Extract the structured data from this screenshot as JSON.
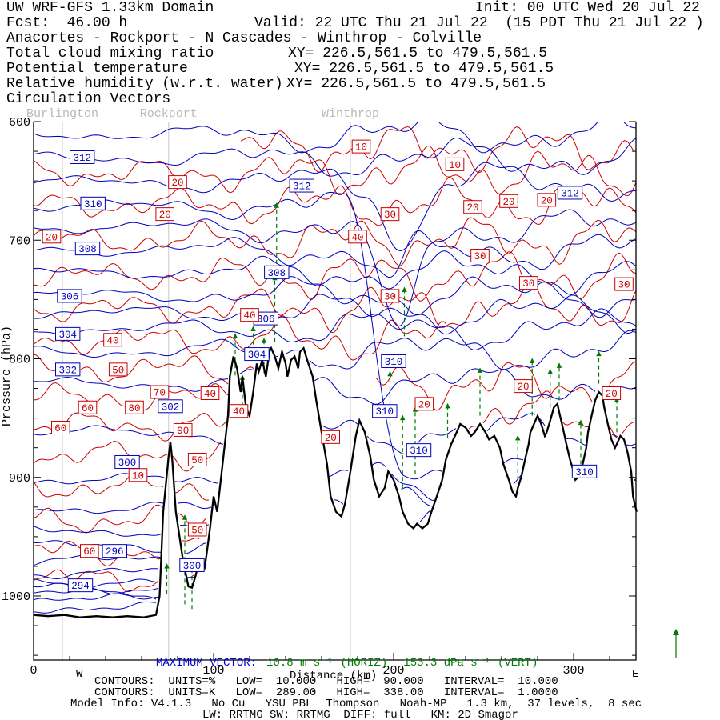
{
  "colors": {
    "black": "#000000",
    "blue": "#0000cd",
    "red": "#d90000",
    "green": "#007a00",
    "gray_label": "#b9b9b9",
    "gray_line": "#c9c9c9"
  },
  "header": {
    "title_left": "UW WRF-GFS 1.33km Domain",
    "init": "Init: 00 UTC Wed 20 Jul 22",
    "fcst": "Fcst:  46.00 h",
    "valid": "Valid: 22 UTC Thu 21 Jul 22  (15 PDT Thu 21 Jul 22 )",
    "route": "Anacortes - Rockport - N Cascades - Winthrop - Colville",
    "fields": [
      {
        "label": "Total cloud mixing ratio",
        "xy": "XY= 226.5,561.5 to 479.5,561.5",
        "color": "black"
      },
      {
        "label": "Potential temperature",
        "xy": "XY= 226.5,561.5 to 479.5,561.5",
        "color": "blue"
      },
      {
        "label": "Relative humidity (w.r.t. water)",
        "xy": "XY= 226.5,561.5 to 479.5,561.5",
        "color": "red"
      },
      {
        "label": "Circulation Vectors",
        "xy": "",
        "color": "green"
      }
    ]
  },
  "footer": {
    "max_vector_label": "MAXIMUM VECTOR:",
    "max_vector_horiz": "10.8 m s⁻¹ (HORIZ)",
    "max_vector_vert": "153.3 dPa s⁻¹ (VERT)",
    "rh_contour_info": "CONTOURS:  UNITS=%   LOW=  10.000   HIGH=  90.000   INTERVAL=  10.000",
    "theta_contour_info": "CONTOURS:  UNITS=K   LOW=  289.00   HIGH=  338.00   INTERVAL=  1.0000",
    "model_info": "Model Info: V4.1.3   No Cu   YSU PBL  Thompson   Noah-MP   1.3 km,  37 levels,  8 sec",
    "model_info2": "LW: RRTMG SW: RRTMG  DIFF: full   KM: 2D Smagor"
  },
  "chart_data": {
    "type": "contour-cross-section",
    "x_axis": {
      "label": "Distance (km)",
      "ticks": [
        0,
        100,
        200,
        300
      ],
      "minor_tick_km": 20,
      "range_km": [
        0,
        335
      ],
      "west_label": "W",
      "east_label": "E"
    },
    "y_axis": {
      "label": "Pressure (hPa)",
      "ticks": [
        600,
        700,
        800,
        900,
        1000
      ],
      "minor_tick_hPa": 25,
      "range": [
        600,
        1054
      ]
    },
    "cities": [
      {
        "name": "Burlington",
        "km": 16
      },
      {
        "name": "Rockport",
        "km": 75
      },
      {
        "name": "Winthrop",
        "km": 176
      }
    ],
    "theta_contour_spec": {
      "units": "K",
      "low": 289,
      "high": 338,
      "interval": 1
    },
    "rh_contour_spec": {
      "units": "%",
      "low": 10,
      "high": 90,
      "interval": 10
    },
    "theta_levels": [
      {
        "v": 289,
        "p0": 1016
      },
      {
        "v": 290,
        "p0": 1010
      },
      {
        "v": 291,
        "p0": 1003
      },
      {
        "v": 292,
        "p0": 998
      },
      {
        "v": 293,
        "p0": 993
      },
      {
        "v": 294,
        "p0": 988
      },
      {
        "v": 295,
        "p0": 980
      },
      {
        "v": 296,
        "p0": 970
      },
      {
        "v": 297,
        "p0": 958
      },
      {
        "v": 298,
        "p0": 945
      },
      {
        "v": 299,
        "p0": 926
      },
      {
        "v": 300,
        "p0": 902
      },
      {
        "v": 301,
        "p0": 862
      },
      {
        "v": 302,
        "p0": 821
      },
      {
        "v": 303,
        "p0": 794
      },
      {
        "v": 304,
        "p0": 775
      },
      {
        "v": 305,
        "p0": 761
      },
      {
        "v": 306,
        "p0": 746
      },
      {
        "v": 307,
        "p0": 727
      },
      {
        "v": 308,
        "p0": 708,
        "dip": {
          "km": 198,
          "w": 10,
          "d": 30
        }
      },
      {
        "v": 309,
        "p0": 689,
        "dip": {
          "km": 201,
          "w": 13,
          "d": 95
        }
      },
      {
        "v": 310,
        "p0": 671,
        "shelf": {
          "a": 172,
          "b": 206,
          "p": 893
        }
      },
      {
        "v": 311,
        "p0": 651,
        "dip": {
          "km": 206,
          "w": 12,
          "d": 55
        }
      },
      {
        "v": 312,
        "p0": 631
      },
      {
        "v": 313,
        "p0": 611
      }
    ],
    "rh_lines": [
      {
        "p0": 622,
        "km0": 115,
        "km1": 335
      },
      {
        "p0": 643,
        "km0": 0,
        "km1": 335
      },
      {
        "p0": 670,
        "km0": 0,
        "km1": 335
      },
      {
        "p0": 700,
        "km0": 0,
        "km1": 335
      },
      {
        "p0": 730,
        "km0": 0,
        "km1": 335
      },
      {
        "p0": 757,
        "km0": 0,
        "km1": 335
      },
      {
        "p0": 784,
        "km0": 0,
        "km1": 230
      },
      {
        "p0": 809,
        "km0": 0,
        "km1": 141
      },
      {
        "p0": 833,
        "km0": 0,
        "km1": 119
      },
      {
        "p0": 856,
        "km0": 0,
        "km1": 110
      },
      {
        "p0": 881,
        "km0": 0,
        "km1": 104
      },
      {
        "p0": 908,
        "km0": 0,
        "km1": 98
      },
      {
        "p0": 936,
        "km0": 0,
        "km1": 96
      },
      {
        "p0": 963,
        "km0": 0,
        "km1": 93
      },
      {
        "p0": 986,
        "km0": 0,
        "km1": 92
      },
      {
        "p0": 821,
        "km0": 190,
        "km1": 335
      },
      {
        "p0": 848,
        "km0": 235,
        "km1": 335
      }
    ],
    "theta_labels": [
      {
        "v": "312",
        "km": 27,
        "p": 630
      },
      {
        "v": "310",
        "km": 33,
        "p": 669
      },
      {
        "v": "308",
        "km": 30,
        "p": 707
      },
      {
        "v": "306",
        "km": 20,
        "p": 747
      },
      {
        "v": "304",
        "km": 19,
        "p": 779
      },
      {
        "v": "302",
        "km": 19,
        "p": 809
      },
      {
        "v": "300",
        "km": 52,
        "p": 887
      },
      {
        "v": "296",
        "km": 45,
        "p": 962
      },
      {
        "v": "294",
        "km": 26,
        "p": 991
      },
      {
        "v": "300",
        "km": 88,
        "p": 974
      },
      {
        "v": "312",
        "km": 149,
        "p": 654
      },
      {
        "v": "308",
        "km": 135,
        "p": 727
      },
      {
        "v": "306",
        "km": 129,
        "p": 766
      },
      {
        "v": "304",
        "km": 124,
        "p": 796
      },
      {
        "v": "302",
        "km": 76,
        "p": 840
      },
      {
        "v": "310",
        "km": 200,
        "p": 802
      },
      {
        "v": "310",
        "km": 195,
        "p": 844
      },
      {
        "v": "310",
        "km": 214,
        "p": 877
      },
      {
        "v": "312",
        "km": 298,
        "p": 660
      },
      {
        "v": "310",
        "km": 306,
        "p": 895
      }
    ],
    "rh_labels": [
      {
        "v": "20",
        "km": 80,
        "p": 651
      },
      {
        "v": "20",
        "km": 73,
        "p": 678
      },
      {
        "v": "20",
        "km": 10,
        "p": 697
      },
      {
        "v": "10",
        "km": 182,
        "p": 621
      },
      {
        "v": "10",
        "km": 234,
        "p": 636
      },
      {
        "v": "30",
        "km": 198,
        "p": 678
      },
      {
        "v": "40",
        "km": 180,
        "p": 697
      },
      {
        "v": "20",
        "km": 244,
        "p": 672
      },
      {
        "v": "20",
        "km": 264,
        "p": 667
      },
      {
        "v": "20",
        "km": 285,
        "p": 666
      },
      {
        "v": "30",
        "km": 248,
        "p": 713
      },
      {
        "v": "30",
        "km": 275,
        "p": 736
      },
      {
        "v": "30",
        "km": 328,
        "p": 737
      },
      {
        "v": "30",
        "km": 198,
        "p": 747
      },
      {
        "v": "40",
        "km": 120,
        "p": 763
      },
      {
        "v": "40",
        "km": 44,
        "p": 784
      },
      {
        "v": "50",
        "km": 47,
        "p": 809
      },
      {
        "v": "70",
        "km": 70,
        "p": 828
      },
      {
        "v": "40",
        "km": 98,
        "p": 829
      },
      {
        "v": "60",
        "km": 30,
        "p": 841
      },
      {
        "v": "80",
        "km": 56,
        "p": 841
      },
      {
        "v": "90",
        "km": 83,
        "p": 860
      },
      {
        "v": "40",
        "km": 114,
        "p": 844
      },
      {
        "v": "60",
        "km": 15,
        "p": 858
      },
      {
        "v": "20",
        "km": 165,
        "p": 866
      },
      {
        "v": "20",
        "km": 217,
        "p": 838
      },
      {
        "v": "20",
        "km": 272,
        "p": 823
      },
      {
        "v": "20",
        "km": 321,
        "p": 829
      },
      {
        "v": "50",
        "km": 91,
        "p": 885
      },
      {
        "v": "10",
        "km": 58,
        "p": 898
      },
      {
        "v": "60",
        "km": 31,
        "p": 962
      },
      {
        "v": "50",
        "km": 91,
        "p": 944
      }
    ],
    "vectors": [
      {
        "km": 84,
        "from": 1007,
        "to": 932
      },
      {
        "km": 88,
        "from": 1011,
        "to": 970
      },
      {
        "km": 74,
        "from": 998,
        "to": 973
      },
      {
        "km": 112,
        "from": 814,
        "to": 779
      },
      {
        "km": 116,
        "from": 846,
        "to": 814
      },
      {
        "km": 122,
        "from": 800,
        "to": 773
      },
      {
        "km": 128,
        "from": 812,
        "to": 783
      },
      {
        "km": 134,
        "from": 786,
        "to": 730
      },
      {
        "km": 135,
        "from": 720,
        "to": 669
      },
      {
        "km": 198,
        "from": 875,
        "to": 811
      },
      {
        "km": 205,
        "from": 909,
        "to": 848
      },
      {
        "km": 212,
        "from": 897,
        "to": 841
      },
      {
        "km": 206,
        "from": 781,
        "to": 740
      },
      {
        "km": 230,
        "from": 867,
        "to": 838
      },
      {
        "km": 248,
        "from": 848,
        "to": 808
      },
      {
        "km": 269,
        "from": 902,
        "to": 865
      },
      {
        "km": 277,
        "from": 848,
        "to": 800
      },
      {
        "km": 287,
        "from": 841,
        "to": 809
      },
      {
        "km": 292,
        "from": 835,
        "to": 804
      },
      {
        "km": 304,
        "from": 889,
        "to": 852
      },
      {
        "km": 314,
        "from": 821,
        "to": 794
      },
      {
        "km": 324,
        "from": 862,
        "to": 833
      }
    ],
    "terrain_profile": [
      [
        0,
        1016
      ],
      [
        8,
        1017
      ],
      [
        17,
        1016
      ],
      [
        26,
        1018
      ],
      [
        35,
        1017
      ],
      [
        44,
        1018
      ],
      [
        52,
        1017
      ],
      [
        61,
        1018
      ],
      [
        68,
        1016
      ],
      [
        70,
        1000
      ],
      [
        72,
        929
      ],
      [
        75,
        882
      ],
      [
        76,
        870
      ],
      [
        77,
        885
      ],
      [
        79,
        929
      ],
      [
        83,
        970
      ],
      [
        86,
        992
      ],
      [
        88,
        993
      ],
      [
        90,
        983
      ],
      [
        92,
        970
      ],
      [
        95,
        976
      ],
      [
        96,
        966
      ],
      [
        98,
        943
      ],
      [
        100,
        916
      ],
      [
        102,
        929
      ],
      [
        104,
        902
      ],
      [
        106,
        875
      ],
      [
        108,
        848
      ],
      [
        109,
        815
      ],
      [
        111,
        798
      ],
      [
        113,
        808
      ],
      [
        115,
        828
      ],
      [
        116,
        815
      ],
      [
        118,
        841
      ],
      [
        120,
        848
      ],
      [
        122,
        828
      ],
      [
        124,
        804
      ],
      [
        125,
        811
      ],
      [
        127,
        801
      ],
      [
        129,
        815
      ],
      [
        131,
        794
      ],
      [
        132,
        791
      ],
      [
        134,
        798
      ],
      [
        136,
        808
      ],
      [
        138,
        794
      ],
      [
        140,
        804
      ],
      [
        141,
        815
      ],
      [
        143,
        801
      ],
      [
        145,
        798
      ],
      [
        147,
        808
      ],
      [
        148,
        794
      ],
      [
        150,
        791
      ],
      [
        152,
        801
      ],
      [
        155,
        815
      ],
      [
        157,
        835
      ],
      [
        160,
        862
      ],
      [
        163,
        889
      ],
      [
        165,
        916
      ],
      [
        168,
        929
      ],
      [
        171,
        933
      ],
      [
        173,
        922
      ],
      [
        176,
        895
      ],
      [
        179,
        865
      ],
      [
        181,
        852
      ],
      [
        184,
        862
      ],
      [
        187,
        882
      ],
      [
        189,
        902
      ],
      [
        192,
        916
      ],
      [
        195,
        909
      ],
      [
        197,
        895
      ],
      [
        200,
        902
      ],
      [
        203,
        916
      ],
      [
        205,
        929
      ],
      [
        208,
        939
      ],
      [
        211,
        943
      ],
      [
        213,
        939
      ],
      [
        216,
        943
      ],
      [
        219,
        939
      ],
      [
        221,
        929
      ],
      [
        224,
        916
      ],
      [
        227,
        902
      ],
      [
        229,
        885
      ],
      [
        232,
        872
      ],
      [
        235,
        862
      ],
      [
        237,
        855
      ],
      [
        240,
        858
      ],
      [
        243,
        865
      ],
      [
        245,
        862
      ],
      [
        248,
        855
      ],
      [
        251,
        862
      ],
      [
        253,
        868
      ],
      [
        256,
        865
      ],
      [
        259,
        875
      ],
      [
        261,
        889
      ],
      [
        264,
        902
      ],
      [
        266,
        912
      ],
      [
        268,
        916
      ],
      [
        269,
        909
      ],
      [
        271,
        899
      ],
      [
        273,
        885
      ],
      [
        275,
        872
      ],
      [
        276,
        862
      ],
      [
        278,
        855
      ],
      [
        280,
        848
      ],
      [
        282,
        855
      ],
      [
        284,
        865
      ],
      [
        285,
        862
      ],
      [
        287,
        852
      ],
      [
        289,
        841
      ],
      [
        291,
        838
      ],
      [
        292,
        845
      ],
      [
        294,
        858
      ],
      [
        296,
        872
      ],
      [
        298,
        885
      ],
      [
        300,
        895
      ],
      [
        301,
        902
      ],
      [
        303,
        899
      ],
      [
        305,
        889
      ],
      [
        307,
        875
      ],
      [
        308,
        862
      ],
      [
        310,
        848
      ],
      [
        312,
        835
      ],
      [
        314,
        828
      ],
      [
        316,
        831
      ],
      [
        317,
        841
      ],
      [
        319,
        855
      ],
      [
        321,
        868
      ],
      [
        323,
        875
      ],
      [
        324,
        872
      ],
      [
        326,
        865
      ],
      [
        328,
        868
      ],
      [
        330,
        879
      ],
      [
        332,
        895
      ],
      [
        333,
        916
      ],
      [
        335,
        929
      ]
    ]
  }
}
